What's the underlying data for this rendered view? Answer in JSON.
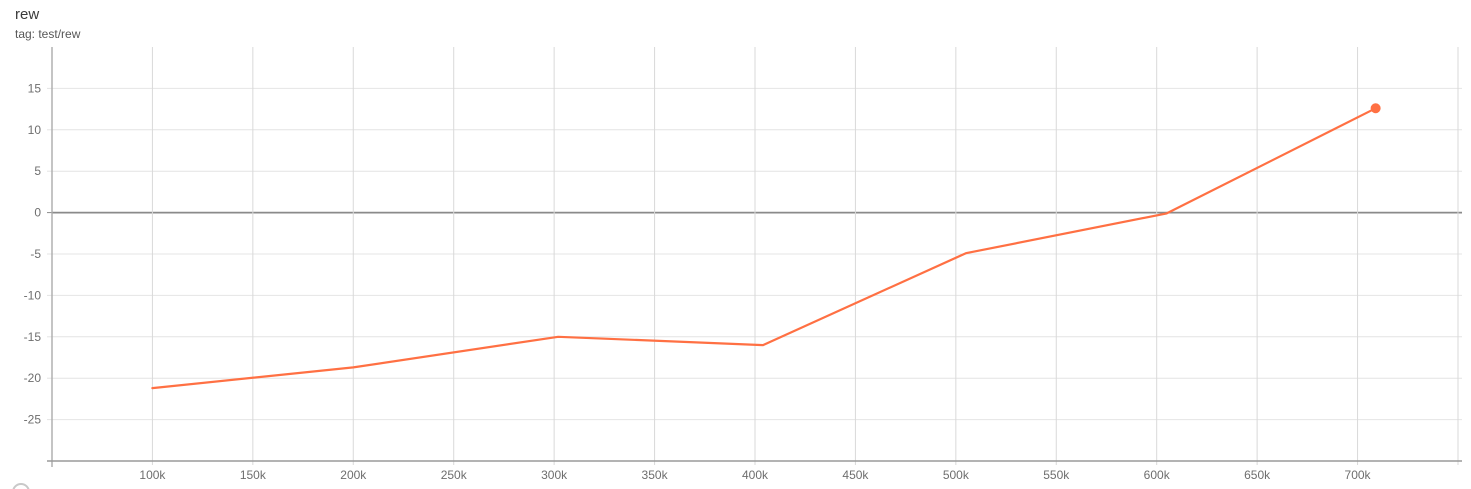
{
  "header": {
    "title": "rew",
    "subtitle": "tag: test/rew"
  },
  "chart_data": {
    "type": "line",
    "title": "rew",
    "tag": "test/rew",
    "series": [
      {
        "name": "test/rew",
        "x": [
          100000,
          200000,
          302000,
          404000,
          505000,
          605000,
          709000
        ],
        "y": [
          -21.2,
          -18.7,
          -15.0,
          -16.0,
          -4.9,
          -0.1,
          12.6
        ],
        "end_marker": true
      }
    ],
    "x_ticks": [
      {
        "value": 100000,
        "label": "100k"
      },
      {
        "value": 150000,
        "label": "150k"
      },
      {
        "value": 200000,
        "label": "200k"
      },
      {
        "value": 250000,
        "label": "250k"
      },
      {
        "value": 300000,
        "label": "300k"
      },
      {
        "value": 350000,
        "label": "350k"
      },
      {
        "value": 400000,
        "label": "400k"
      },
      {
        "value": 450000,
        "label": "450k"
      },
      {
        "value": 500000,
        "label": "500k"
      },
      {
        "value": 550000,
        "label": "550k"
      },
      {
        "value": 600000,
        "label": "600k"
      },
      {
        "value": 650000,
        "label": "650k"
      },
      {
        "value": 700000,
        "label": "700k"
      },
      {
        "value": 750000,
        "label": ""
      }
    ],
    "y_ticks": [
      15,
      10,
      5,
      0,
      -5,
      -10,
      -15,
      -20,
      -25
    ],
    "x_range": [
      50000,
      752000
    ],
    "y_range": [
      -30,
      20
    ],
    "grid": true,
    "zero_line": true,
    "legend": "none",
    "colors": {
      "line": "#ff7043",
      "h_grid": "#e4e4e4",
      "v_grid": "#d9d9d9",
      "zero_line": "#8a8a8a",
      "x_axis": "#9a9a9a",
      "y_axis": "#ababab",
      "tick_label": "#6e6e6e"
    }
  }
}
